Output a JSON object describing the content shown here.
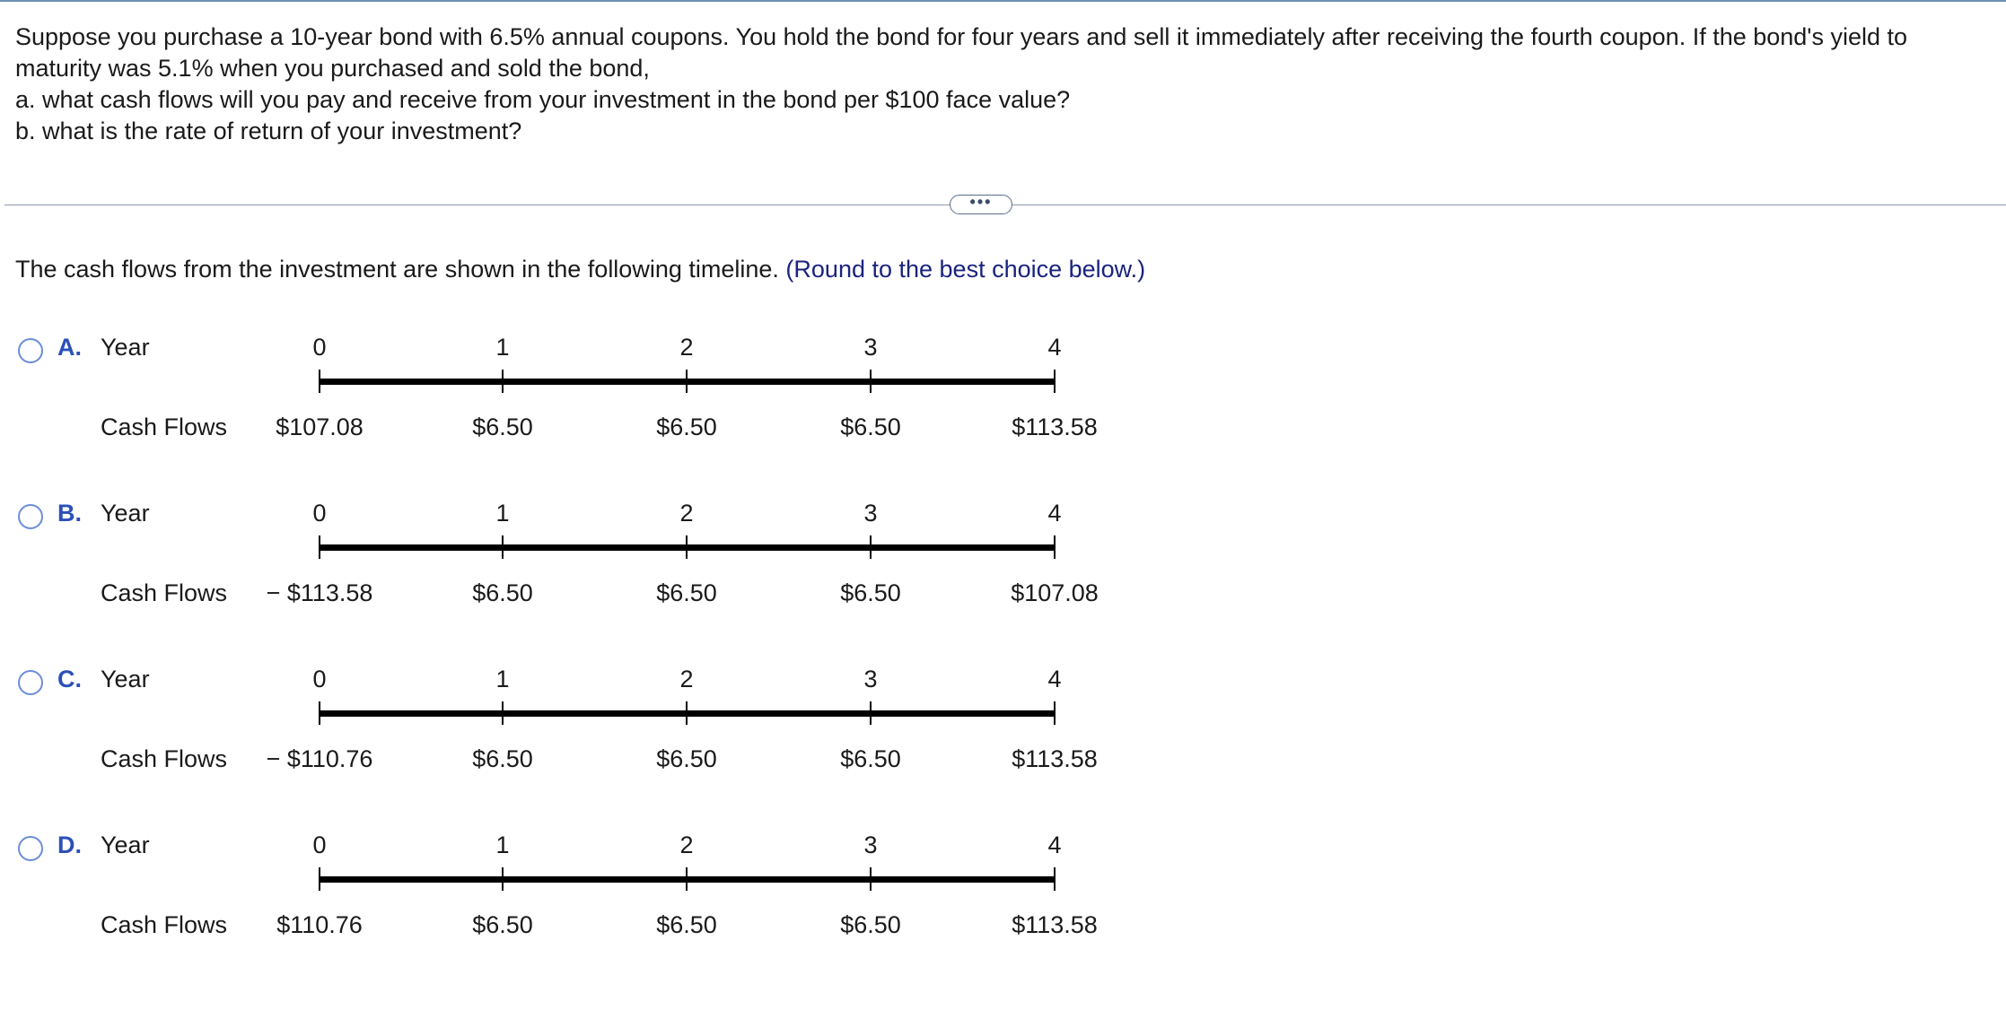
{
  "question": {
    "lines": [
      "Suppose you purchase a 10-year bond with 6.5% annual coupons. You hold the bond for four years and sell it immediately after receiving the fourth coupon. If the bond's yield to maturity was 5.1% when you purchased and sold the bond,",
      "a. what cash flows will you pay and receive from your investment in the bond per $100 face value?",
      "b. what is the rate of return of your investment?"
    ]
  },
  "more_button": {
    "label": "•••"
  },
  "instruction": {
    "text": "The cash flows from the investment are shown in the following timeline.",
    "hint": "(Round to the best choice below.)"
  },
  "colors": {
    "option_letter": "#2b50b8",
    "radio_border": "#6c8ed8",
    "hint": "#1a237e"
  },
  "options": [
    {
      "letter": "A.",
      "year_label": "Year",
      "cf_label": "Cash Flows",
      "years": [
        "0",
        "1",
        "2",
        "3",
        "4"
      ],
      "cash_flows": [
        "$107.08",
        "$6.50",
        "$6.50",
        "$6.50",
        "$113.58"
      ]
    },
    {
      "letter": "B.",
      "year_label": "Year",
      "cf_label": "Cash Flows",
      "years": [
        "0",
        "1",
        "2",
        "3",
        "4"
      ],
      "cash_flows": [
        "− $113.58",
        "$6.50",
        "$6.50",
        "$6.50",
        "$107.08"
      ]
    },
    {
      "letter": "C.",
      "year_label": "Year",
      "cf_label": "Cash Flows",
      "years": [
        "0",
        "1",
        "2",
        "3",
        "4"
      ],
      "cash_flows": [
        "− $110.76",
        "$6.50",
        "$6.50",
        "$6.50",
        "$113.58"
      ]
    },
    {
      "letter": "D.",
      "year_label": "Year",
      "cf_label": "Cash Flows",
      "years": [
        "0",
        "1",
        "2",
        "3",
        "4"
      ],
      "cash_flows": [
        "$110.76",
        "$6.50",
        "$6.50",
        "$6.50",
        "$113.58"
      ]
    }
  ]
}
